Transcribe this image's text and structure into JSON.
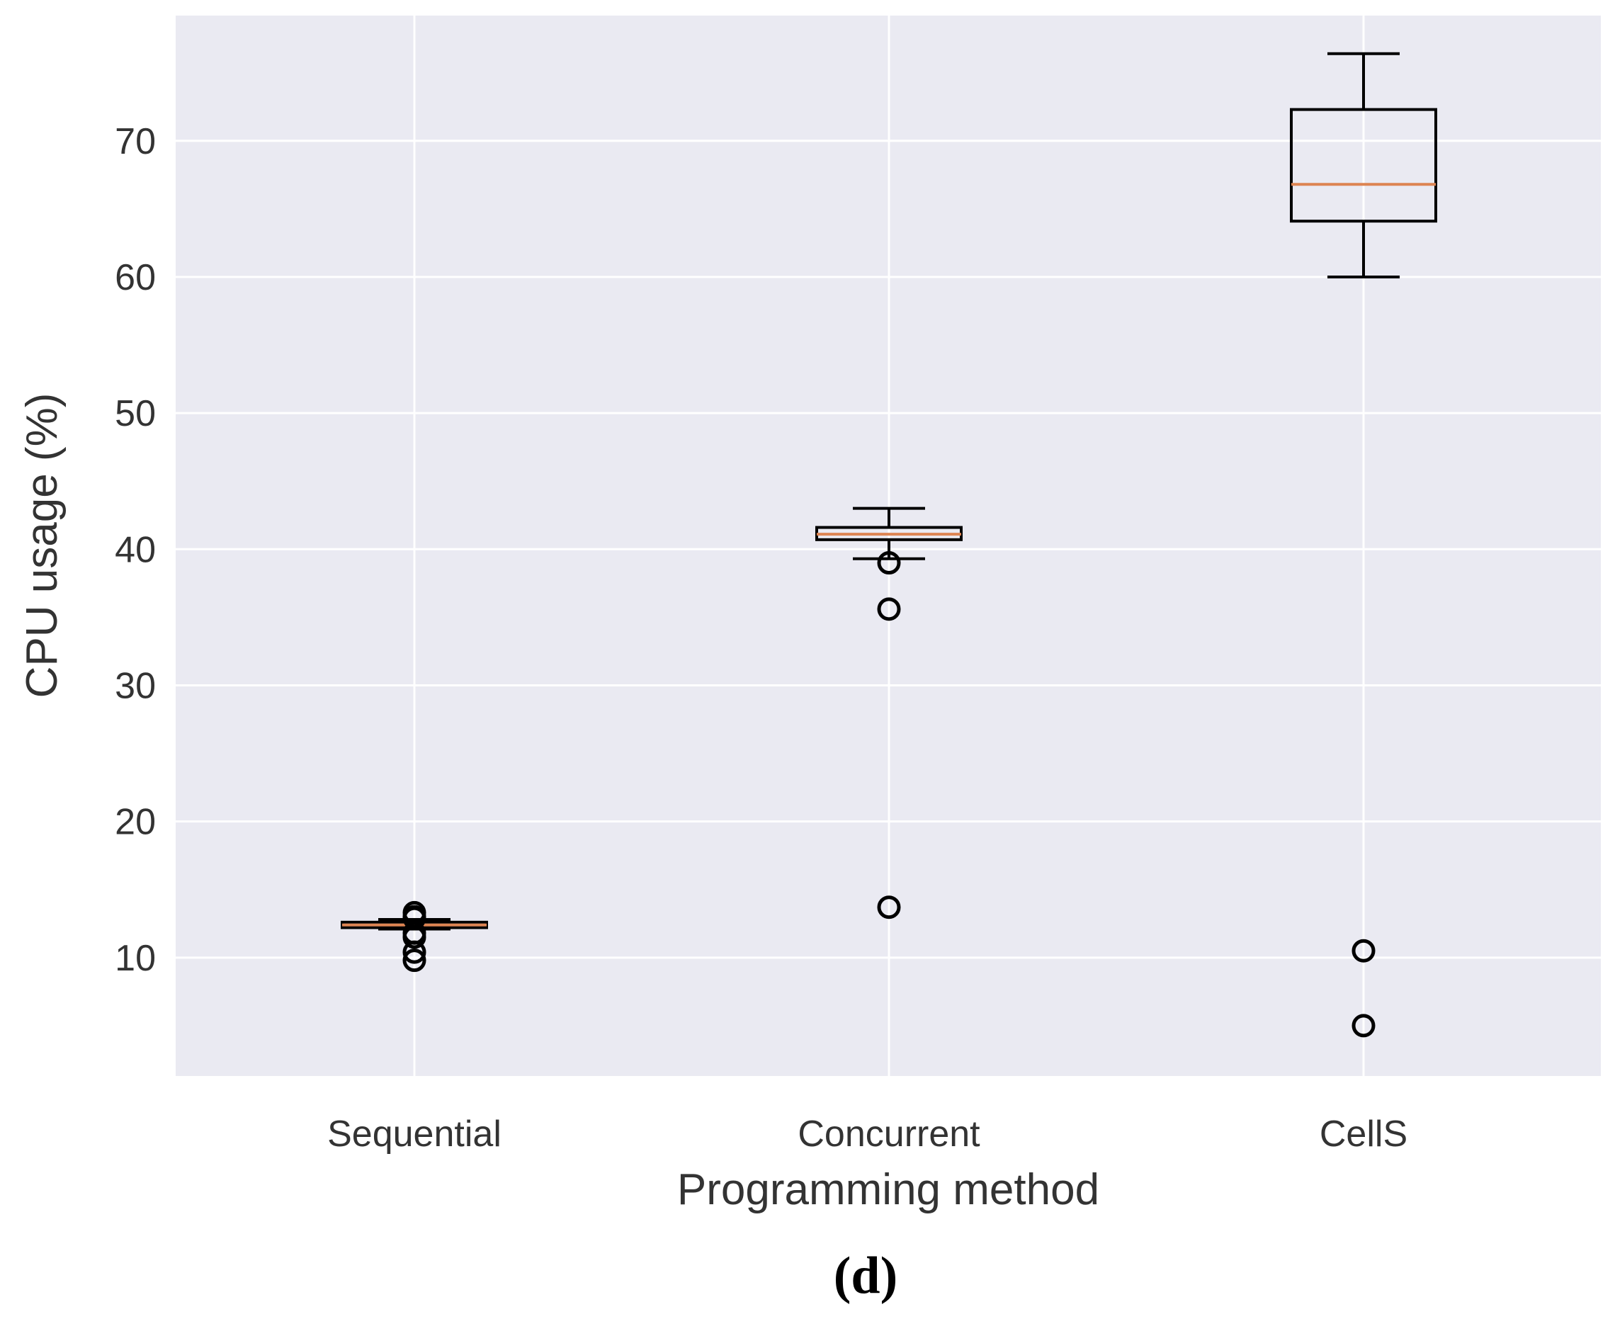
{
  "chart_data": {
    "type": "box",
    "categories": [
      "Sequential",
      "Concurrent",
      "CellS"
    ],
    "xlabel": "Programming method",
    "ylabel": "CPU usage (%)",
    "ylim": [
      1.3,
      79.2
    ],
    "yticks": [
      10,
      20,
      30,
      40,
      50,
      60,
      70
    ],
    "grid": true,
    "panel_label": "(d)",
    "colors": {
      "background": "#eaeaf2",
      "grid": "#ffffff",
      "box": "#000000",
      "median": "#dd8452",
      "outlier": "#000000"
    },
    "boxes": [
      {
        "category": "Sequential",
        "whisker_low": 12.1,
        "q1": 12.2,
        "median": 12.4,
        "q3": 12.6,
        "whisker_high": 12.8,
        "outliers": [
          13.3,
          13.0,
          12.9,
          11.8,
          11.5,
          10.4,
          9.8
        ]
      },
      {
        "category": "Concurrent",
        "whisker_low": 39.3,
        "q1": 40.7,
        "median": 41.1,
        "q3": 41.6,
        "whisker_high": 43.0,
        "outliers": [
          39.0,
          35.6,
          13.7
        ]
      },
      {
        "category": "CellS",
        "whisker_low": 60.0,
        "q1": 64.1,
        "median": 66.8,
        "q3": 72.3,
        "whisker_high": 76.4,
        "outliers": [
          10.5,
          5.0
        ]
      }
    ]
  }
}
